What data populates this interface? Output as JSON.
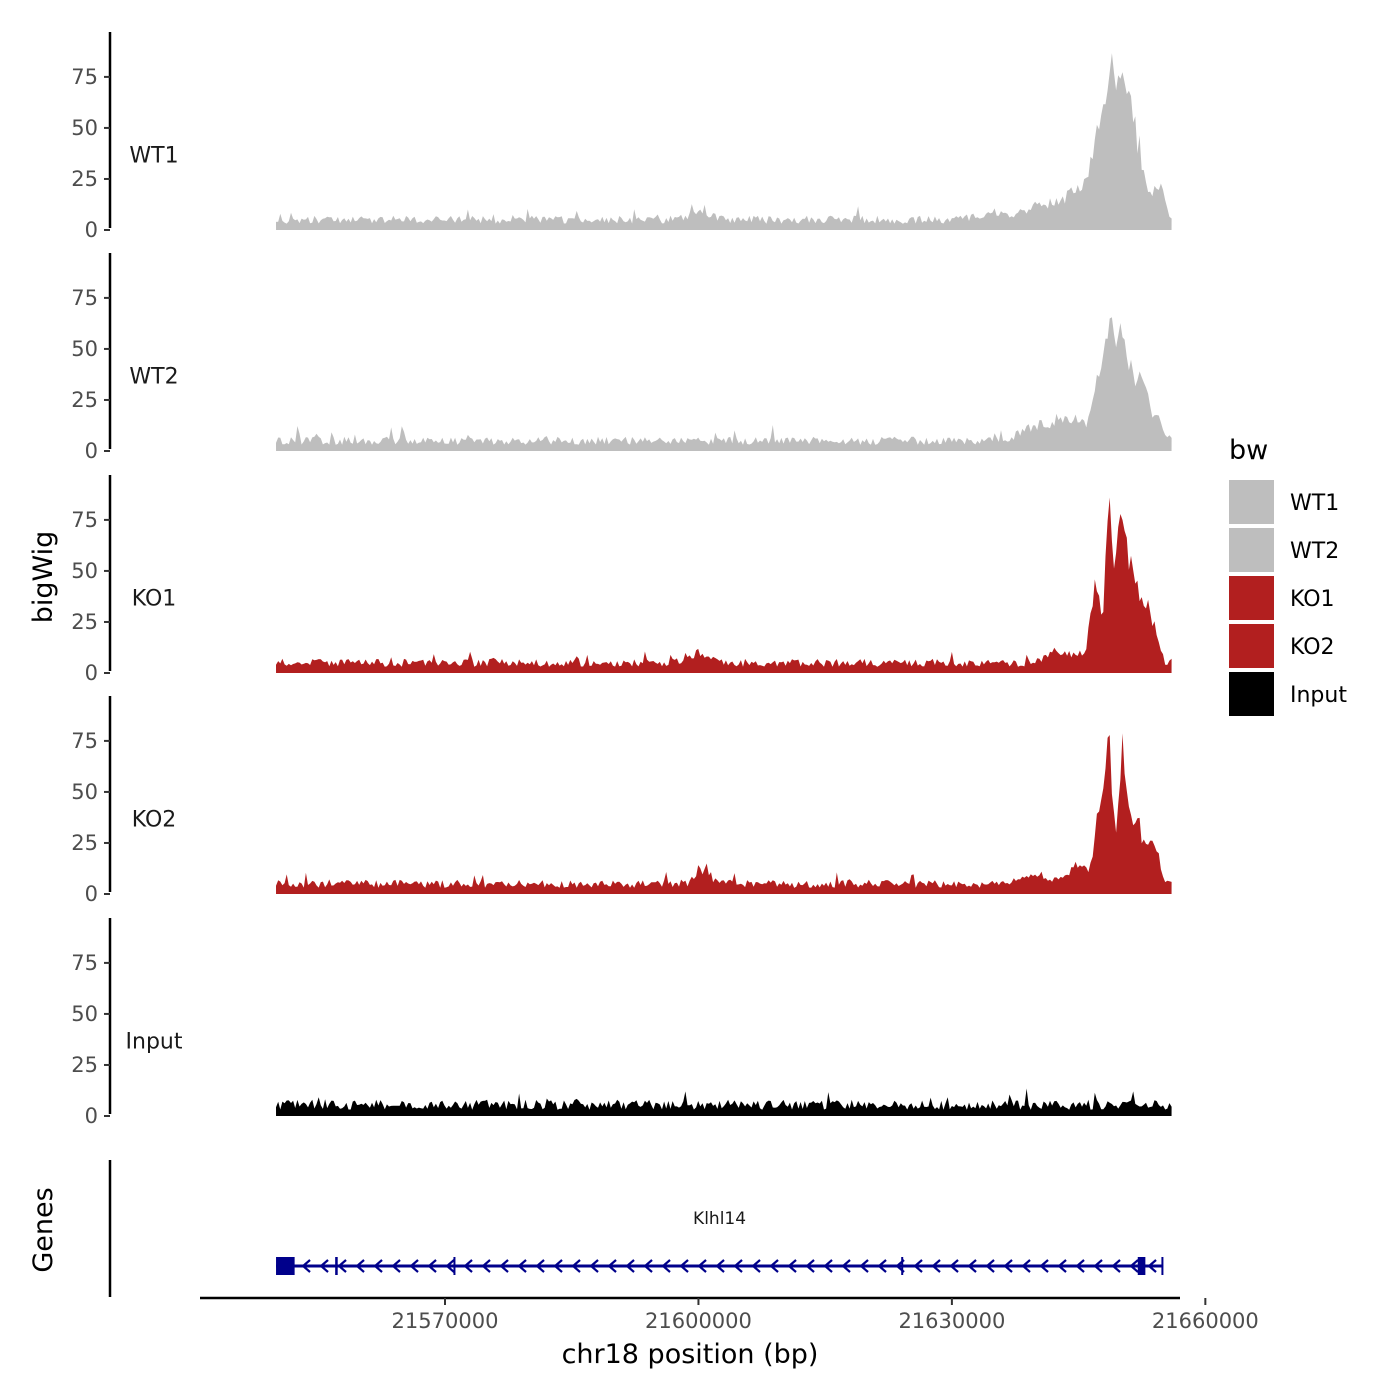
{
  "chart_data": {
    "type": "area",
    "title": "",
    "ylabel": "bigWig",
    "xlabel": "chr18 position (bp)",
    "xlim": [
      21541000,
      21657000
    ],
    "ylim": [
      0,
      97
    ],
    "yticks": [
      0,
      25,
      50,
      75
    ],
    "xticks": [
      21570000,
      21600000,
      21630000,
      21660000
    ],
    "x_start": 21550000,
    "x_end": 21656000,
    "legend": {
      "title": "bw",
      "position": "right",
      "entries": [
        {
          "label": "WT1",
          "color": "#bebebe"
        },
        {
          "label": "WT2",
          "color": "#bebebe"
        },
        {
          "label": "KO1",
          "color": "#b21f1f"
        },
        {
          "label": "KO2",
          "color": "#b21f1f"
        },
        {
          "label": "Input",
          "color": "#000000"
        }
      ]
    },
    "series": [
      {
        "name": "WT1",
        "color": "#bebebe",
        "baseline": 3,
        "wiggle": 4,
        "seed": 11,
        "peaks": [
          {
            "x": 21600000,
            "h": 4,
            "w": 2000
          },
          {
            "x": 21635000,
            "h": 4,
            "w": 3000
          },
          {
            "x": 21641000,
            "h": 8,
            "w": 2500
          },
          {
            "x": 21645000,
            "h": 16,
            "w": 2000
          },
          {
            "x": 21647500,
            "h": 40,
            "w": 1200
          },
          {
            "x": 21649000,
            "h": 58,
            "w": 1000
          },
          {
            "x": 21650500,
            "h": 55,
            "w": 1100
          },
          {
            "x": 21652000,
            "h": 35,
            "w": 1300
          },
          {
            "x": 21654500,
            "h": 17,
            "w": 900
          }
        ]
      },
      {
        "name": "WT2",
        "color": "#bebebe",
        "baseline": 3,
        "wiggle": 4,
        "seed": 23,
        "peaks": [
          {
            "x": 21640000,
            "h": 8,
            "w": 2500
          },
          {
            "x": 21644000,
            "h": 12,
            "w": 2000
          },
          {
            "x": 21647500,
            "h": 35,
            "w": 1100
          },
          {
            "x": 21649000,
            "h": 50,
            "w": 1000
          },
          {
            "x": 21650500,
            "h": 45,
            "w": 1100
          },
          {
            "x": 21652500,
            "h": 30,
            "w": 1200
          },
          {
            "x": 21654500,
            "h": 10,
            "w": 900
          }
        ]
      },
      {
        "name": "KO1",
        "color": "#b21f1f",
        "baseline": 3,
        "wiggle": 4,
        "seed": 37,
        "peaks": [
          {
            "x": 21600000,
            "h": 5,
            "w": 1500
          },
          {
            "x": 21643000,
            "h": 6,
            "w": 2000
          },
          {
            "x": 21647000,
            "h": 40,
            "w": 900
          },
          {
            "x": 21648600,
            "h": 82,
            "w": 500
          },
          {
            "x": 21650000,
            "h": 70,
            "w": 900
          },
          {
            "x": 21651500,
            "h": 40,
            "w": 1200
          },
          {
            "x": 21653500,
            "h": 25,
            "w": 1000
          }
        ]
      },
      {
        "name": "KO2",
        "color": "#b21f1f",
        "baseline": 3,
        "wiggle": 4,
        "seed": 51,
        "peaks": [
          {
            "x": 21600500,
            "h": 8,
            "w": 1200
          },
          {
            "x": 21640000,
            "h": 5,
            "w": 2000
          },
          {
            "x": 21645000,
            "h": 10,
            "w": 1500
          },
          {
            "x": 21647500,
            "h": 40,
            "w": 800
          },
          {
            "x": 21648600,
            "h": 75,
            "w": 600
          },
          {
            "x": 21650200,
            "h": 68,
            "w": 700
          },
          {
            "x": 21651800,
            "h": 32,
            "w": 1100
          },
          {
            "x": 21653800,
            "h": 20,
            "w": 1000
          }
        ]
      },
      {
        "name": "Input",
        "color": "#000000",
        "baseline": 3,
        "wiggle": 5,
        "seed": 73,
        "peaks": []
      }
    ],
    "genes": {
      "track_label": "Genes",
      "color": "#00008b",
      "items": [
        {
          "name": "Klhl14",
          "strand": "-",
          "start": 21550000,
          "end": 21655000,
          "exons": [
            [
              21550000,
              21552200
            ],
            [
              21557000,
              21557300
            ],
            [
              21571000,
              21571200
            ],
            [
              21624000,
              21624150
            ],
            [
              21652000,
              21652900
            ],
            [
              21654800,
              21655000
            ]
          ]
        }
      ]
    }
  }
}
